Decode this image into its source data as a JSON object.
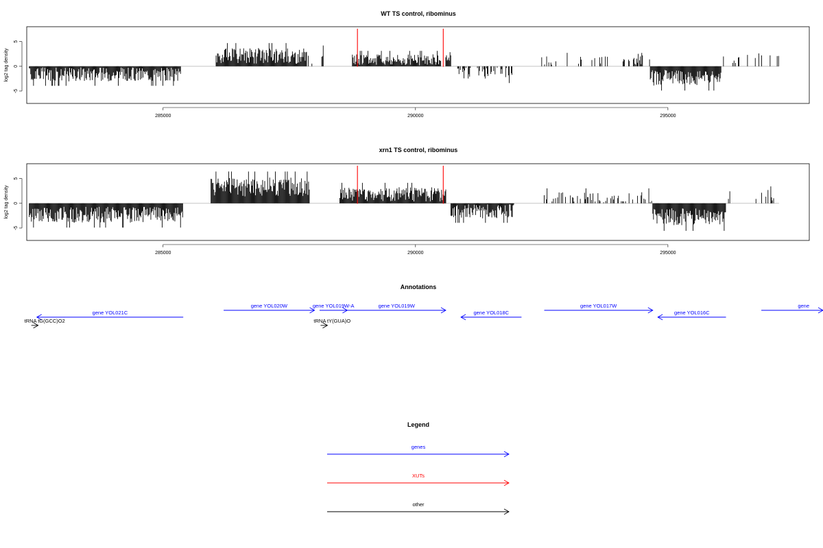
{
  "chart_data": [
    {
      "type": "bar",
      "title": "WT TS control, ribominus",
      "ylabel": "log2 tag density",
      "xlabel": "",
      "ylim": [
        -7.5,
        8
      ],
      "yticks": [
        -5,
        0,
        5
      ],
      "ytick_labels": [
        "-5",
        "0",
        "5"
      ],
      "xlim": [
        282300,
        297800
      ],
      "xticks": [
        285000,
        290000,
        295000
      ],
      "xtick_labels": [
        "285000",
        "290000",
        "295000"
      ],
      "xut_markers": [
        288850,
        290550
      ],
      "marker_color": "#ff0000",
      "segments": [
        {
          "start": 282350,
          "end": 285350,
          "mean": -1.6,
          "spread": 0.9
        },
        {
          "start": 286050,
          "end": 287850,
          "mean": 2.1,
          "spread": 1.0
        },
        {
          "start": 287850,
          "end": 288200,
          "mean": 1.6,
          "spread": 1.0,
          "density": 0.2
        },
        {
          "start": 288750,
          "end": 290500,
          "mean": 1.3,
          "spread": 0.7
        },
        {
          "start": 290600,
          "end": 290700,
          "mean": 1.3,
          "spread": 0.6
        },
        {
          "start": 290750,
          "end": 291950,
          "mean": -1.3,
          "spread": 0.8,
          "density": 0.45
        },
        {
          "start": 292500,
          "end": 294450,
          "mean": 0.9,
          "spread": 0.7,
          "density": 0.15
        },
        {
          "start": 294300,
          "end": 294650,
          "mean": 1.5,
          "spread": 0.8,
          "density": 0.4
        },
        {
          "start": 294650,
          "end": 296050,
          "mean": -2.3,
          "spread": 1.0
        },
        {
          "start": 296100,
          "end": 297200,
          "mean": 1.5,
          "spread": 0.7,
          "density": 0.12
        }
      ]
    },
    {
      "type": "bar",
      "title": "xrn1 TS control, ribominus",
      "ylabel": "log2 tag density",
      "xlabel": "",
      "ylim": [
        -7.5,
        8
      ],
      "yticks": [
        -5,
        0,
        5
      ],
      "ytick_labels": [
        "-5",
        "0",
        "5"
      ],
      "xlim": [
        282300,
        297800
      ],
      "xticks": [
        285000,
        290000,
        295000
      ],
      "xtick_labels": [
        "285000",
        "290000",
        "295000"
      ],
      "xut_markers": [
        288850,
        290550
      ],
      "marker_color": "#ff0000",
      "segments": [
        {
          "start": 282350,
          "end": 285400,
          "mean": -2.3,
          "spread": 1.0
        },
        {
          "start": 285950,
          "end": 287900,
          "mean": 3.3,
          "spread": 1.2
        },
        {
          "start": 288500,
          "end": 290600,
          "mean": 1.8,
          "spread": 0.9
        },
        {
          "start": 290700,
          "end": 291950,
          "mean": -1.6,
          "spread": 0.9
        },
        {
          "start": 292550,
          "end": 294700,
          "mean": 1.2,
          "spread": 0.7,
          "density": 0.35
        },
        {
          "start": 294700,
          "end": 296150,
          "mean": -2.7,
          "spread": 1.1
        },
        {
          "start": 296100,
          "end": 297300,
          "mean": 1.6,
          "spread": 0.7,
          "density": 0.15
        }
      ]
    }
  ],
  "annotations": {
    "title": "Annotations",
    "features": [
      {
        "label": "gene YOL021C",
        "start": 285400,
        "end": 282500,
        "row": 1,
        "color": "#0000ff"
      },
      {
        "label": "tRNA tG(GCC)O2",
        "start": 282390,
        "end": 282462,
        "row": 2,
        "color": "#000000"
      },
      {
        "label": "gene YOL020W",
        "start": 286200,
        "end": 288000,
        "row": 0,
        "color": "#0000ff"
      },
      {
        "label": "gene YOL019W-A",
        "start": 288100,
        "end": 288650,
        "row": 0,
        "color": "#0000ff"
      },
      {
        "label": "gene YOL019W",
        "start": 288650,
        "end": 290600,
        "row": 0,
        "color": "#0000ff"
      },
      {
        "label": "tRNA tY(GUA)O",
        "start": 288120,
        "end": 288203,
        "row": 2,
        "color": "#000000"
      },
      {
        "label": "gene YOL018C",
        "start": 292100,
        "end": 290900,
        "row": 1,
        "color": "#0000ff"
      },
      {
        "label": "gene YOL017W",
        "start": 292550,
        "end": 294700,
        "row": 0,
        "color": "#0000ff"
      },
      {
        "label": "gene YOL016C",
        "start": 296150,
        "end": 294800,
        "row": 1,
        "color": "#0000ff"
      },
      {
        "label": "gene",
        "start": 296850,
        "end": 298200,
        "row": 0,
        "color": "#0000ff"
      }
    ]
  },
  "legend": {
    "title": "Legend",
    "items": [
      {
        "label": "genes",
        "color": "#0000ff"
      },
      {
        "label": "XUTs",
        "color": "#ff0000"
      },
      {
        "label": "other",
        "color": "#000000"
      }
    ]
  }
}
